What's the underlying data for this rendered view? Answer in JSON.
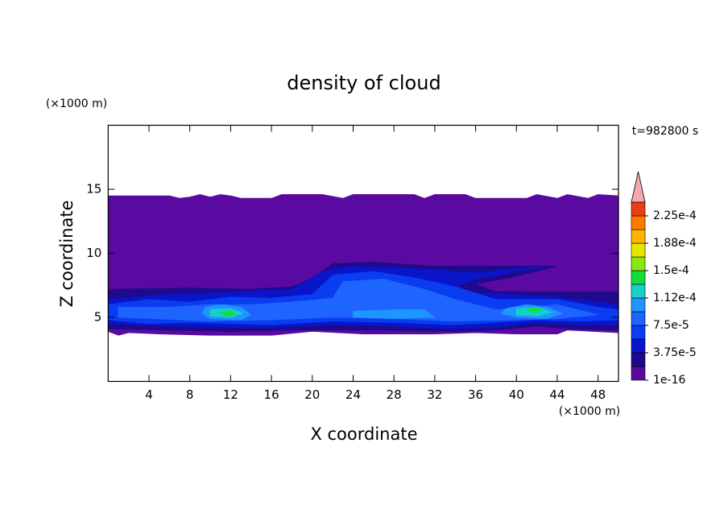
{
  "chart_data": {
    "type": "contour",
    "title": "density of cloud",
    "xlabel": "X coordinate",
    "ylabel": "Z coordinate",
    "x_unit": "(×1000 m)",
    "y_unit": "(×1000 m)",
    "time_label": "t=982800 s",
    "xlim": [
      0,
      50
    ],
    "ylim": [
      0,
      20
    ],
    "xticks": [
      4,
      8,
      12,
      16,
      20,
      24,
      28,
      32,
      36,
      40,
      44,
      48
    ],
    "yticks": [
      5,
      10,
      15
    ],
    "levels": [
      1e-16,
      1.875e-05,
      3.75e-05,
      5.625e-05,
      7.5e-05,
      9.375e-05,
      0.0001125,
      0.00013125,
      0.00015,
      0.00016875,
      0.0001875,
      0.00020625,
      0.000225
    ],
    "colors": [
      "#5a0aa0",
      "#1e0a8c",
      "#0a14c8",
      "#0a3cf0",
      "#1e64ff",
      "#1e96ff",
      "#14d2c8",
      "#14dc3c",
      "#8ce614",
      "#e6e600",
      "#ffb400",
      "#ff7800",
      "#f03c14"
    ],
    "extend_color": "#f5aaaa",
    "colorbar_ticks": [
      1e-16,
      {
        "value": 3.75e-05,
        "label": "3.75e-5"
      },
      {
        "value": 7.5e-05,
        "label": "7.5e-5"
      },
      {
        "value": 0.0001125,
        "label": "1.12e-4"
      },
      {
        "value": 0.00015,
        "label": "1.5e-4"
      },
      {
        "value": 0.0001875,
        "label": "1.88e-4"
      },
      {
        "value": 0.000225,
        "label": "2.25e-4"
      }
    ],
    "regions": [
      {
        "value": 1e-16,
        "x": [
          0,
          6,
          7,
          8,
          9,
          10,
          11,
          12,
          13,
          16,
          17,
          21,
          23,
          24,
          30,
          31,
          32,
          35,
          36,
          41,
          42,
          44,
          45,
          47,
          48,
          50,
          50,
          45,
          44,
          40,
          36,
          32,
          25,
          20,
          16,
          10,
          5,
          2,
          1,
          0
        ],
        "z": [
          14.5,
          14.5,
          14.3,
          14.4,
          14.6,
          14.4,
          14.6,
          14.5,
          14.3,
          14.3,
          14.6,
          14.6,
          14.3,
          14.6,
          14.6,
          14.3,
          14.6,
          14.6,
          14.3,
          14.3,
          14.6,
          14.3,
          14.6,
          14.3,
          14.6,
          14.5,
          3.8,
          4.0,
          3.7,
          3.7,
          3.8,
          3.7,
          3.7,
          3.9,
          3.6,
          3.6,
          3.7,
          3.8,
          3.6,
          3.9
        ]
      },
      {
        "value": 1.875e-05,
        "x": [
          0,
          8,
          14,
          18,
          20,
          22,
          26,
          32,
          40,
          44,
          40,
          36,
          38,
          44,
          50,
          50,
          45,
          42,
          38,
          34,
          26,
          18,
          12,
          6,
          0
        ],
        "z": [
          7.2,
          7.3,
          7.2,
          7.4,
          8.0,
          9.2,
          9.3,
          9.0,
          9.0,
          9.0,
          8.2,
          7.6,
          7.0,
          7.0,
          7.0,
          4.0,
          4.1,
          4.3,
          4.0,
          3.9,
          4.0,
          4.0,
          3.9,
          4.0,
          4.1
        ]
      },
      {
        "value": 3.75e-05,
        "x": [
          0,
          6,
          12,
          18,
          21,
          24,
          30,
          36,
          43,
          36,
          33,
          40,
          46,
          50,
          50,
          46,
          42,
          38,
          34,
          28,
          22,
          16,
          12,
          6,
          0
        ],
        "z": [
          6.4,
          6.8,
          7.0,
          7.2,
          8.6,
          9.0,
          8.8,
          8.5,
          9.0,
          8.0,
          7.0,
          6.8,
          6.4,
          6.0,
          4.4,
          4.4,
          4.6,
          4.2,
          4.1,
          4.3,
          4.4,
          4.2,
          4.2,
          4.3,
          4.5
        ]
      },
      {
        "value": 5.625e-05,
        "x": [
          0,
          4,
          8,
          12,
          16,
          20,
          22,
          26,
          30,
          34,
          38,
          44,
          48,
          50,
          50,
          46,
          42,
          38,
          34,
          28,
          22,
          16,
          12,
          8,
          4,
          0
        ],
        "z": [
          6.0,
          6.4,
          6.2,
          6.6,
          6.5,
          6.8,
          8.3,
          8.6,
          8.1,
          7.4,
          6.4,
          6.4,
          5.8,
          5.6,
          4.8,
          4.7,
          4.8,
          4.6,
          4.4,
          4.6,
          4.7,
          4.4,
          4.5,
          4.6,
          4.5,
          4.8
        ]
      },
      {
        "value": 7.5e-05,
        "x": [
          1,
          6,
          10,
          14,
          18,
          22,
          23,
          27,
          31,
          34,
          38,
          44,
          48,
          44,
          40,
          34,
          28,
          22,
          16,
          10,
          4,
          1
        ],
        "z": [
          5.8,
          5.8,
          6.0,
          6.0,
          6.2,
          6.5,
          7.8,
          8.0,
          7.2,
          6.4,
          5.6,
          6.0,
          5.2,
          4.9,
          4.8,
          4.7,
          4.9,
          5.0,
          4.8,
          4.7,
          4.9,
          5.0
        ]
      },
      {
        "value": 9.375e-05,
        "x": [
          9.5,
          11,
          13,
          14,
          13,
          10,
          9.2
        ],
        "z": [
          5.8,
          6.0,
          5.8,
          5.2,
          4.8,
          4.9,
          5.3
        ]
      },
      {
        "value": 9.375e-05,
        "x": [
          39,
          41,
          43,
          44.5,
          43,
          40,
          38.5
        ],
        "z": [
          5.7,
          6.0,
          5.8,
          5.3,
          4.9,
          5.0,
          5.3
        ]
      },
      {
        "value": 9.375e-05,
        "x": [
          24,
          28,
          31,
          32,
          28,
          24
        ],
        "z": [
          5.5,
          5.6,
          5.6,
          5.0,
          4.9,
          5.0
        ]
      },
      {
        "value": 0.0001125,
        "x": [
          10,
          12,
          13.2,
          12,
          10
        ],
        "z": [
          5.6,
          5.7,
          5.3,
          5.0,
          5.1
        ]
      },
      {
        "value": 0.0001125,
        "x": [
          40,
          42,
          43.5,
          42,
          40
        ],
        "z": [
          5.7,
          5.8,
          5.4,
          5.1,
          5.2
        ]
      },
      {
        "value": 0.00013125,
        "x": [
          11,
          12,
          12.5,
          11.5
        ],
        "z": [
          5.4,
          5.5,
          5.2,
          5.1
        ]
      },
      {
        "value": 0.00013125,
        "x": [
          41,
          42,
          42.5,
          41.3
        ],
        "z": [
          5.7,
          5.75,
          5.5,
          5.45
        ]
      }
    ]
  }
}
